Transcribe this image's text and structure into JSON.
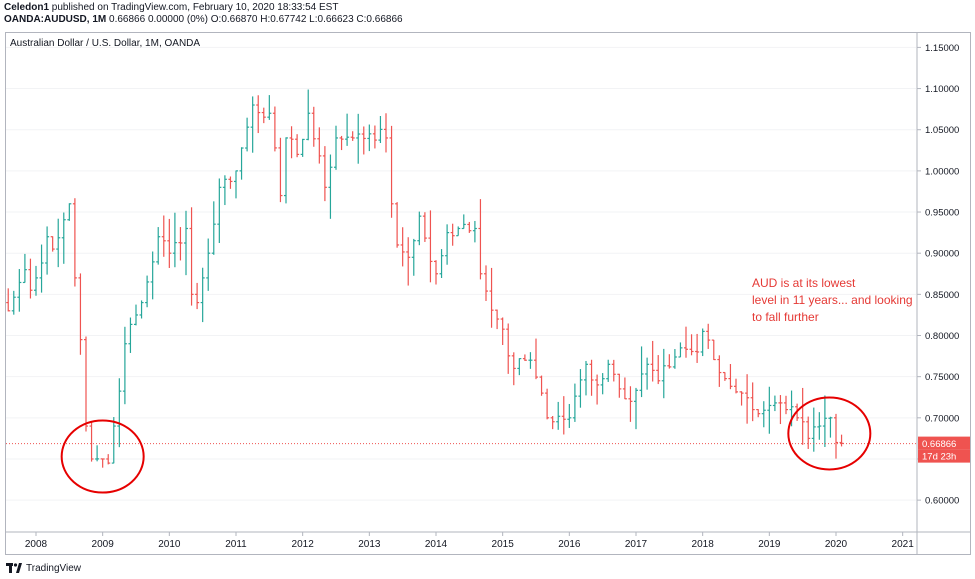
{
  "header": {
    "author": "Celedon1",
    "published": "published on TradingView.com, February 10, 2020 18:33:54 EST",
    "symbol": "OANDA:AUDUSD, 1M",
    "values": "0.66866 0.00000 (0%) O:0.66870 H:0.67742 L:0.66623 C:0.66866"
  },
  "footer": {
    "brand": "TradingView",
    "logo_icon": "tradingview-logo-icon"
  },
  "colors": {
    "up": "#26a69a",
    "down": "#ef5350",
    "price_line": "#ef5350",
    "annotation": "#e53935",
    "axis_text": "#131722",
    "border": "#b2b5be"
  },
  "chart_data": {
    "type": "ohlc",
    "title": "Australian Dollar / U.S. Dollar, 1M, OANDA",
    "xlim": [
      2007.55,
      2021.2
    ],
    "ylim": [
      0.5625,
      1.1675
    ],
    "x_ticks": [
      "2008",
      "2009",
      "2010",
      "2011",
      "2012",
      "2013",
      "2014",
      "2015",
      "2016",
      "2017",
      "2018",
      "2019",
      "2020",
      "2021"
    ],
    "y_ticks": [
      "0.60000",
      "0.65000",
      "0.70000",
      "0.75000",
      "0.80000",
      "0.85000",
      "0.90000",
      "0.95000",
      "1.00000",
      "1.05000",
      "1.10000",
      "1.15000"
    ],
    "last_price": {
      "label": "0.66866",
      "value": 0.66866,
      "countdown": "17d 23h"
    },
    "annotation": "AUD is at its lowest level in 11 years... and looking to fall further",
    "circles": [
      {
        "x": 2009.0,
        "y": 0.653
      },
      {
        "x": 2019.9,
        "y": 0.681
      }
    ],
    "anchors": [
      [
        "2007-08",
        0.83
      ],
      [
        "2007-11",
        0.88
      ],
      [
        "2007-12",
        0.855
      ],
      [
        "2008-01",
        0.87
      ],
      [
        "2008-03",
        0.92
      ],
      [
        "2008-04",
        0.905
      ],
      [
        "2008-07",
        0.96
      ],
      [
        "2008-08",
        0.87
      ],
      [
        "2008-09",
        0.795
      ],
      [
        "2008-10",
        0.69
      ],
      [
        "2008-11",
        0.65
      ],
      [
        "2009-01",
        0.65
      ],
      [
        "2009-02",
        0.645
      ],
      [
        "2009-03",
        0.69
      ],
      [
        "2009-05",
        0.79
      ],
      [
        "2009-08",
        0.84
      ],
      [
        "2009-11",
        0.92
      ],
      [
        "2010-01",
        0.9
      ],
      [
        "2010-04",
        0.93
      ],
      [
        "2010-05",
        0.85
      ],
      [
        "2010-06",
        0.84
      ],
      [
        "2010-08",
        0.9
      ],
      [
        "2010-10",
        0.98
      ],
      [
        "2011-01",
        1.0
      ],
      [
        "2011-04",
        1.08
      ],
      [
        "2011-07",
        1.07
      ],
      [
        "2011-09",
        0.97
      ],
      [
        "2011-10",
        1.04
      ],
      [
        "2011-12",
        1.02
      ],
      [
        "2012-02",
        1.07
      ],
      [
        "2012-05",
        0.98
      ],
      [
        "2012-07",
        1.04
      ],
      [
        "2012-10",
        1.04
      ],
      [
        "2013-01",
        1.045
      ],
      [
        "2013-04",
        1.04
      ],
      [
        "2013-05",
        0.96
      ],
      [
        "2013-06",
        0.91
      ],
      [
        "2013-08",
        0.895
      ],
      [
        "2013-10",
        0.945
      ],
      [
        "2013-12",
        0.89
      ],
      [
        "2014-01",
        0.875
      ],
      [
        "2014-03",
        0.925
      ],
      [
        "2014-05",
        0.93
      ],
      [
        "2014-08",
        0.93
      ],
      [
        "2014-09",
        0.875
      ],
      [
        "2014-12",
        0.82
      ],
      [
        "2015-03",
        0.76
      ],
      [
        "2015-05",
        0.77
      ],
      [
        "2015-06",
        0.77
      ],
      [
        "2015-08",
        0.73
      ],
      [
        "2015-09",
        0.7
      ],
      [
        "2016-01",
        0.7
      ],
      [
        "2016-04",
        0.765
      ],
      [
        "2016-06",
        0.74
      ],
      [
        "2016-08",
        0.765
      ],
      [
        "2016-12",
        0.72
      ],
      [
        "2017-03",
        0.765
      ],
      [
        "2017-05",
        0.745
      ],
      [
        "2017-09",
        0.785
      ],
      [
        "2017-12",
        0.78
      ],
      [
        "2018-01",
        0.805
      ],
      [
        "2018-04",
        0.755
      ],
      [
        "2018-08",
        0.73
      ],
      [
        "2018-10",
        0.71
      ],
      [
        "2019-01",
        0.715
      ],
      [
        "2019-04",
        0.71
      ],
      [
        "2019-06",
        0.7
      ],
      [
        "2019-08",
        0.675
      ],
      [
        "2019-10",
        0.69
      ],
      [
        "2019-12",
        0.7
      ],
      [
        "2020-01",
        0.67
      ],
      [
        "2020-02",
        0.669
      ]
    ]
  }
}
